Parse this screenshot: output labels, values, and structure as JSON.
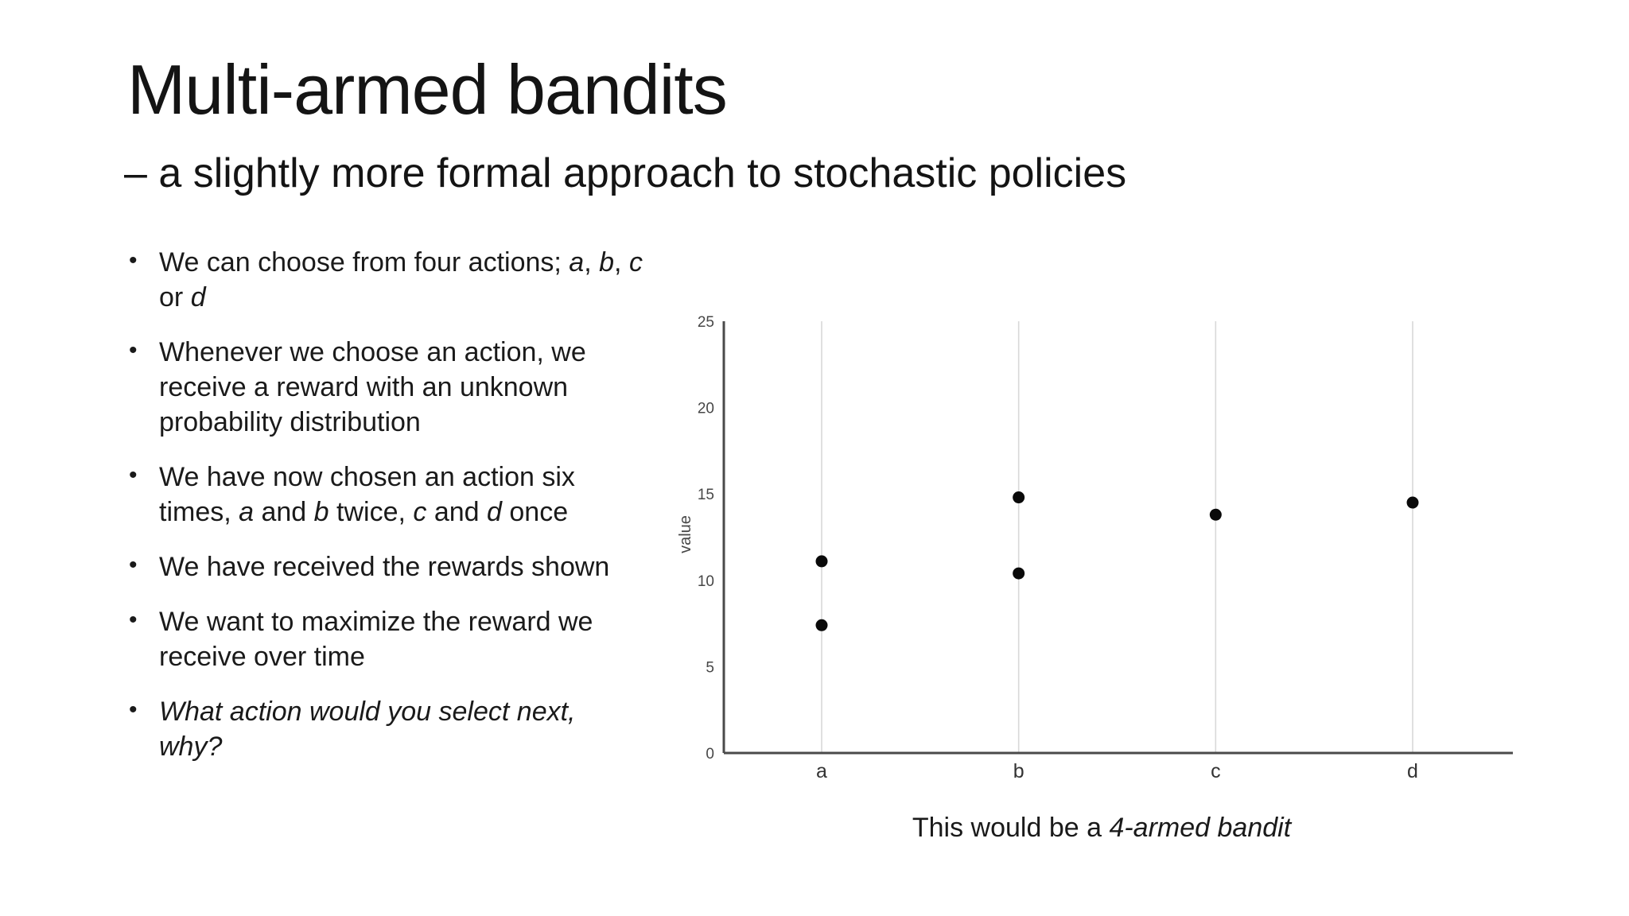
{
  "slide": {
    "title": "Multi-armed bandits",
    "subtitle": "– a slightly more formal approach to stochastic policies",
    "bullet_marker": "•",
    "bullets": [
      {
        "runs": [
          {
            "t": "We can choose from four actions; "
          },
          {
            "t": "a",
            "i": true
          },
          {
            "t": ", "
          },
          {
            "t": "b",
            "i": true
          },
          {
            "t": ", "
          },
          {
            "t": "c",
            "i": true
          },
          {
            "t": " or "
          },
          {
            "t": "d",
            "i": true
          }
        ]
      },
      {
        "runs": [
          {
            "t": "Whenever we choose an action, we receive a reward with an unknown probability distribution"
          }
        ]
      },
      {
        "runs": [
          {
            "t": "We have now chosen an action six times, "
          },
          {
            "t": "a",
            "i": true
          },
          {
            "t": " and "
          },
          {
            "t": "b",
            "i": true
          },
          {
            "t": " twice, "
          },
          {
            "t": "c",
            "i": true
          },
          {
            "t": " and "
          },
          {
            "t": "d",
            "i": true
          },
          {
            "t": " once"
          }
        ]
      },
      {
        "runs": [
          {
            "t": "We have received the rewards shown"
          }
        ]
      },
      {
        "runs": [
          {
            "t": "We want to maximize the reward we receive over time"
          }
        ]
      },
      {
        "runs": [
          {
            "t": "What action would you select next, why?",
            "i": true
          }
        ]
      }
    ],
    "caption_runs": [
      {
        "t": "This would be a "
      },
      {
        "t": "4-armed bandit",
        "i": true
      }
    ]
  },
  "chart_data": {
    "type": "scatter",
    "title": "",
    "xlabel": "",
    "ylabel": "value",
    "categories": [
      "a",
      "b",
      "c",
      "d"
    ],
    "ylim": [
      0,
      25
    ],
    "yticks": [
      0,
      5,
      10,
      15,
      20,
      25
    ],
    "grid": "vertical-category-gridlines-only",
    "legend": "none",
    "points": [
      {
        "category": "a",
        "value": 11.1
      },
      {
        "category": "a",
        "value": 7.4
      },
      {
        "category": "b",
        "value": 14.8
      },
      {
        "category": "b",
        "value": 10.4
      },
      {
        "category": "c",
        "value": 13.8
      },
      {
        "category": "d",
        "value": 14.5
      }
    ],
    "colors": {
      "point": "#0a0a0a",
      "gridline": "#d8d8d8",
      "axis": "#4a4a4a",
      "tick_text": "#474747",
      "category_text": "#333333"
    }
  }
}
